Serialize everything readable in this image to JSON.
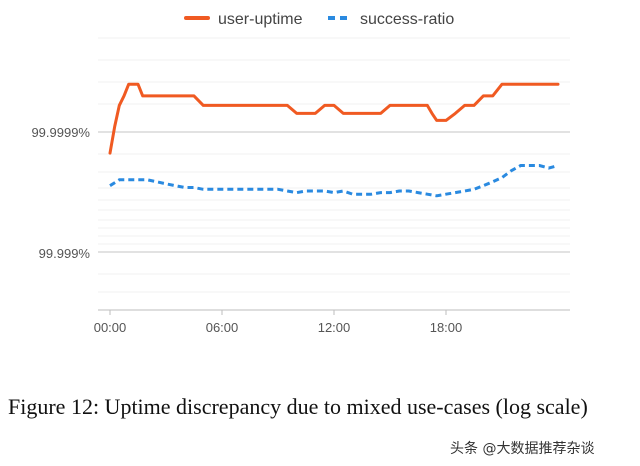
{
  "chart_data": {
    "type": "line",
    "title": "",
    "xlabel": "",
    "ylabel": "",
    "yscale": "log",
    "grid": true,
    "legend_position": "top",
    "x_ticks": [
      "00:00",
      "06:00",
      "12:00",
      "18:00"
    ],
    "y_ticks": [
      "99.9999%",
      "99.999%"
    ],
    "x_range_hours": [
      0,
      24
    ],
    "series": [
      {
        "name": "user-uptime",
        "color": "#f05a22",
        "style": "solid",
        "x": [
          0,
          0.25,
          0.5,
          0.75,
          1,
          1.25,
          1.5,
          1.75,
          2,
          2.5,
          3,
          3.5,
          4,
          4.5,
          5,
          5.5,
          6,
          6.5,
          7,
          7.5,
          8,
          8.5,
          9,
          9.5,
          10,
          10.5,
          11,
          11.5,
          12,
          12.5,
          13,
          13.5,
          14,
          14.5,
          15,
          15.5,
          16,
          16.5,
          17,
          17.25,
          17.5,
          18,
          18.5,
          19,
          19.5,
          20,
          20.5,
          21,
          21.5,
          22,
          22.5,
          23,
          23.5,
          24
        ],
        "values": [
          99.99985,
          99.99991,
          99.99994,
          99.99995,
          99.99996,
          99.99996,
          99.99996,
          99.99995,
          99.99995,
          99.99995,
          99.99995,
          99.99995,
          99.99995,
          99.99995,
          99.99994,
          99.99994,
          99.99994,
          99.99994,
          99.99994,
          99.99994,
          99.99994,
          99.99994,
          99.99994,
          99.99994,
          99.99993,
          99.99993,
          99.99993,
          99.99994,
          99.99994,
          99.99993,
          99.99993,
          99.99993,
          99.99993,
          99.99993,
          99.99994,
          99.99994,
          99.99994,
          99.99994,
          99.99994,
          99.99993,
          99.99992,
          99.99992,
          99.99993,
          99.99994,
          99.99994,
          99.99995,
          99.99995,
          99.99996,
          99.99996,
          99.99996,
          99.99996,
          99.99996,
          99.99996,
          99.99996
        ]
      },
      {
        "name": "success-ratio",
        "color": "#2a8ae0",
        "style": "dashed",
        "x": [
          0,
          0.5,
          1,
          1.5,
          2,
          2.5,
          3,
          3.5,
          4,
          4.5,
          5,
          5.5,
          6,
          6.5,
          7,
          7.5,
          8,
          8.5,
          9,
          9.5,
          10,
          10.5,
          11,
          11.5,
          12,
          12.5,
          13,
          13.5,
          14,
          14.5,
          15,
          15.5,
          16,
          16.5,
          17,
          17.5,
          18,
          18.5,
          19,
          19.5,
          20,
          20.5,
          21,
          21.5,
          22,
          22.5,
          23,
          23.5,
          24
        ],
        "values": [
          99.99972,
          99.99975,
          99.99975,
          99.99975,
          99.99975,
          99.99974,
          99.99973,
          99.99972,
          99.99971,
          99.99971,
          99.9997,
          99.9997,
          99.9997,
          99.9997,
          99.9997,
          99.9997,
          99.9997,
          99.9997,
          99.9997,
          99.99969,
          99.99968,
          99.99969,
          99.99969,
          99.99969,
          99.99968,
          99.99969,
          99.99967,
          99.99967,
          99.99967,
          99.99968,
          99.99968,
          99.99969,
          99.99969,
          99.99968,
          99.99967,
          99.99966,
          99.99967,
          99.99968,
          99.99969,
          99.9997,
          99.99972,
          99.99974,
          99.99976,
          99.99979,
          99.99981,
          99.99981,
          99.99981,
          99.9998,
          99.99981
        ]
      }
    ]
  },
  "caption": "Figure 12: Uptime discrepancy due to mixed use-cases (log scale)",
  "watermark": "头条 @大数据推荐杂谈"
}
